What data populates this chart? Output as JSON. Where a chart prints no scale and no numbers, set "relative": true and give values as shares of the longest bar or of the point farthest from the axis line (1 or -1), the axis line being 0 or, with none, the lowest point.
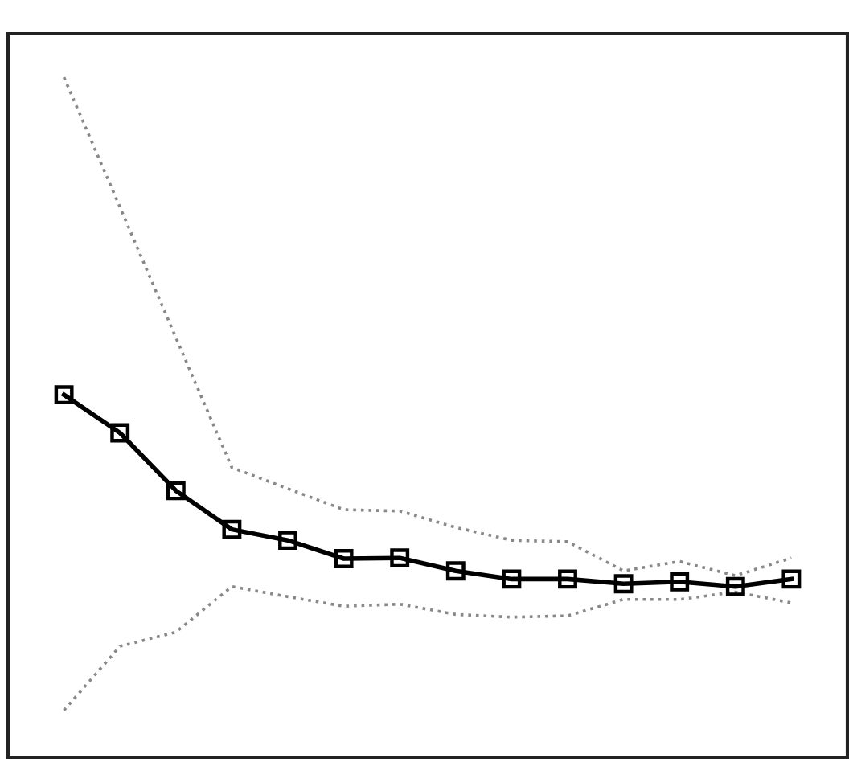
{
  "chart_data": {
    "type": "line",
    "relative": true,
    "categories": [
      null,
      null,
      null,
      null,
      null,
      null,
      null,
      null,
      null,
      null,
      null,
      null,
      null,
      null
    ],
    "series": [
      {
        "color": "#888888",
        "marker": "none",
        "line_style": "dotted",
        "values": [
          1,
          0.809,
          0.617,
          0.426,
          0.395,
          0.364,
          0.362,
          0.338,
          0.319,
          0.317,
          0.274,
          0.288,
          0.267,
          0.293
        ]
      },
      {
        "color": "#888888",
        "marker": "none",
        "line_style": "dotted",
        "values": [
          0.069,
          0.163,
          0.184,
          0.251,
          0.236,
          0.222,
          0.225,
          0.21,
          0.206,
          0.208,
          0.232,
          0.232,
          0.243,
          0.227
        ]
      },
      {
        "color": "#000000",
        "marker": "square",
        "line_style": "solid",
        "values": [
          0.533,
          0.477,
          0.392,
          0.335,
          0.319,
          0.292,
          0.293,
          0.274,
          0.262,
          0.262,
          0.255,
          0.258,
          0.251,
          0.262
        ]
      }
    ]
  }
}
